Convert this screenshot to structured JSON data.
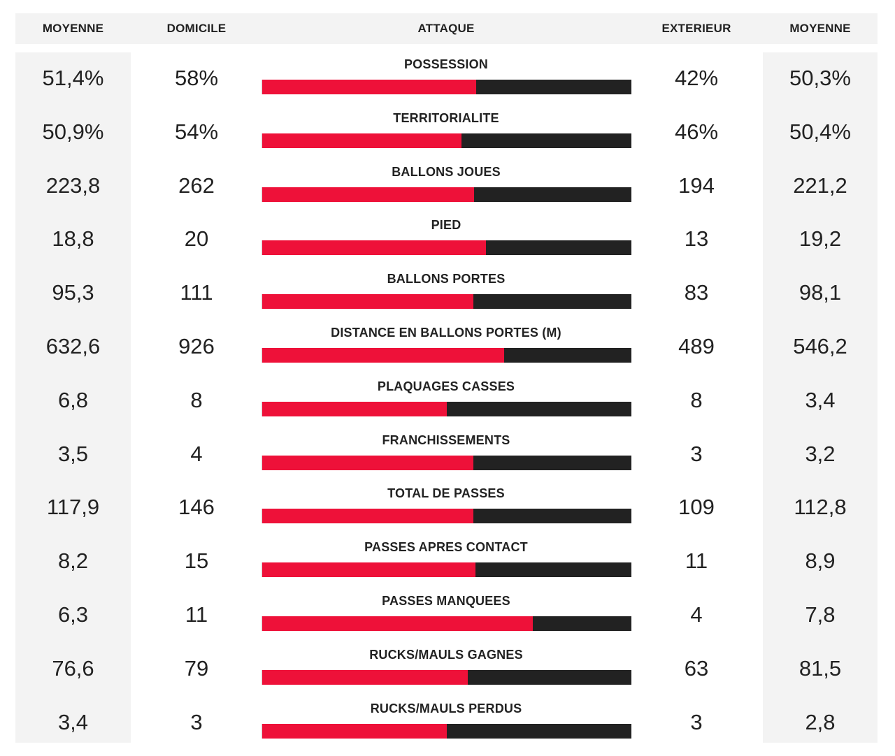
{
  "header": {
    "avg_home_label": "MOYENNE",
    "home_label": "DOMICILE",
    "title": "ATTAQUE",
    "away_label": "EXTERIEUR",
    "avg_away_label": "MOYENNE"
  },
  "colors": {
    "home_bar": "#ee1139",
    "away_bar": "#222222",
    "panel_bg": "#f3f3f3"
  },
  "chart_data": {
    "type": "bar",
    "orientation": "horizontal-stacked-share",
    "title": "ATTAQUE",
    "categories": [
      "POSSESSION",
      "TERRITORIALITE",
      "BALLONS JOUES",
      "PIED",
      "BALLONS PORTES",
      "DISTANCE EN BALLONS PORTES (M)",
      "PLAQUAGES CASSES",
      "FRANCHISSEMENTS",
      "TOTAL DE PASSES",
      "PASSES APRES CONTACT",
      "PASSES MANQUEES",
      "RUCKS/MAULS GAGNES",
      "RUCKS/MAULS PERDUS"
    ],
    "rows": [
      {
        "label": "POSSESSION",
        "avg_home": "51,4%",
        "home": "58%",
        "away": "42%",
        "avg_away": "50,3%",
        "home_value": 58,
        "away_value": 42
      },
      {
        "label": "TERRITORIALITE",
        "avg_home": "50,9%",
        "home": "54%",
        "away": "46%",
        "avg_away": "50,4%",
        "home_value": 54,
        "away_value": 46
      },
      {
        "label": "BALLONS JOUES",
        "avg_home": "223,8",
        "home": "262",
        "away": "194",
        "avg_away": "221,2",
        "home_value": 262,
        "away_value": 194
      },
      {
        "label": "PIED",
        "avg_home": "18,8",
        "home": "20",
        "away": "13",
        "avg_away": "19,2",
        "home_value": 20,
        "away_value": 13
      },
      {
        "label": "BALLONS PORTES",
        "avg_home": "95,3",
        "home": "111",
        "away": "83",
        "avg_away": "98,1",
        "home_value": 111,
        "away_value": 83
      },
      {
        "label": "DISTANCE EN BALLONS PORTES (M)",
        "avg_home": "632,6",
        "home": "926",
        "away": "489",
        "avg_away": "546,2",
        "home_value": 926,
        "away_value": 489
      },
      {
        "label": "PLAQUAGES CASSES",
        "avg_home": "6,8",
        "home": "8",
        "away": "8",
        "avg_away": "3,4",
        "home_value": 8,
        "away_value": 8
      },
      {
        "label": "FRANCHISSEMENTS",
        "avg_home": "3,5",
        "home": "4",
        "away": "3",
        "avg_away": "3,2",
        "home_value": 4,
        "away_value": 3
      },
      {
        "label": "TOTAL DE PASSES",
        "avg_home": "117,9",
        "home": "146",
        "away": "109",
        "avg_away": "112,8",
        "home_value": 146,
        "away_value": 109
      },
      {
        "label": "PASSES APRES CONTACT",
        "avg_home": "8,2",
        "home": "15",
        "away": "11",
        "avg_away": "8,9",
        "home_value": 15,
        "away_value": 11
      },
      {
        "label": "PASSES MANQUEES",
        "avg_home": "6,3",
        "home": "11",
        "away": "4",
        "avg_away": "7,8",
        "home_value": 11,
        "away_value": 4
      },
      {
        "label": "RUCKS/MAULS GAGNES",
        "avg_home": "76,6",
        "home": "79",
        "away": "63",
        "avg_away": "81,5",
        "home_value": 79,
        "away_value": 63
      },
      {
        "label": "RUCKS/MAULS PERDUS",
        "avg_home": "3,4",
        "home": "3",
        "away": "3",
        "avg_away": "2,8",
        "home_value": 3,
        "away_value": 3
      }
    ]
  }
}
